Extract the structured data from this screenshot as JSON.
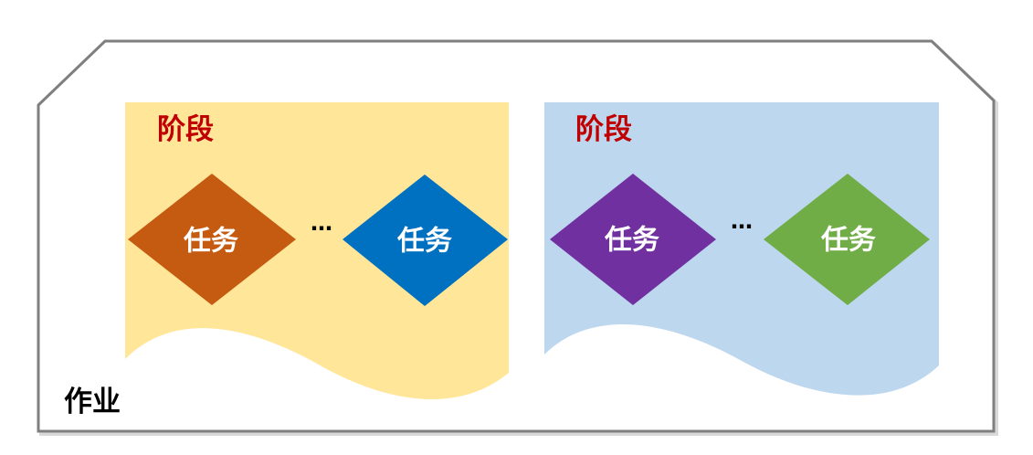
{
  "job": {
    "label": "作业",
    "border_color": "#7F7F7F",
    "label_color": "#000000"
  },
  "colors": {
    "stage_label": "#C00000",
    "task_text": "#FFFFFF",
    "separator": "#000000"
  },
  "stages": [
    {
      "label": "阶段",
      "fill": "#FFE699",
      "separator": "…",
      "tasks": [
        {
          "label": "任务",
          "color": "#C55A11"
        },
        {
          "label": "任务",
          "color": "#0070C0"
        }
      ]
    },
    {
      "label": "阶段",
      "fill": "#BDD7EE",
      "separator": "…",
      "tasks": [
        {
          "label": "任务",
          "color": "#7030A0"
        },
        {
          "label": "任务",
          "color": "#70AD47"
        }
      ]
    }
  ]
}
